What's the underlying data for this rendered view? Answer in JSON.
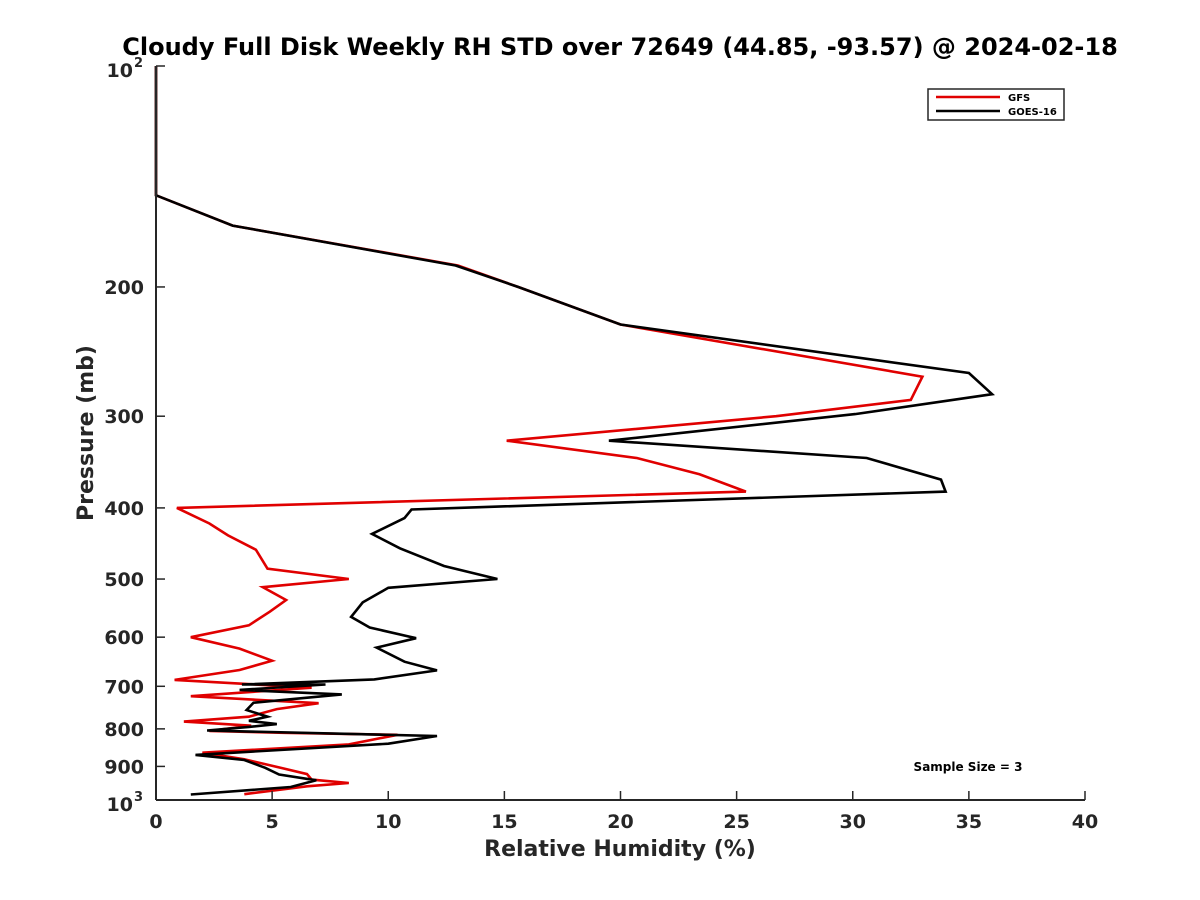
{
  "chart_data": {
    "type": "line",
    "title": "Cloudy Full Disk Weekly RH STD over 72649 (44.85, -93.57) @ 2024-02-18",
    "xlabel": "Relative Humidity (%)",
    "ylabel": "Pressure (mb)",
    "xlim": [
      0,
      40
    ],
    "ylim": [
      100,
      1000
    ],
    "y_scale": "log",
    "y_reversed": true,
    "grid": false,
    "legend_position": "top-right",
    "x_ticks": [
      "0",
      "5",
      "10",
      "15",
      "20",
      "25",
      "30",
      "35",
      "40"
    ],
    "y_ticks": [
      {
        "value": 100,
        "base": "10",
        "exp": "2"
      },
      {
        "value": 200,
        "label": "200"
      },
      {
        "value": 300,
        "label": "300"
      },
      {
        "value": 400,
        "label": "400"
      },
      {
        "value": 500,
        "label": "500"
      },
      {
        "value": 600,
        "label": "600"
      },
      {
        "value": 700,
        "label": "700"
      },
      {
        "value": 800,
        "label": "800"
      },
      {
        "value": 900,
        "label": "900"
      },
      {
        "value": 1000,
        "base": "10",
        "exp": "3"
      }
    ],
    "annotation": "Sample Size = 3",
    "series": [
      {
        "name": "GFS",
        "color": "#e00000",
        "points": [
          [
            0,
            100
          ],
          [
            0,
            125
          ],
          [
            0,
            150
          ],
          [
            3.3,
            165
          ],
          [
            13,
            187
          ],
          [
            15.6,
            200
          ],
          [
            20,
            225
          ],
          [
            33,
            265
          ],
          [
            32.5,
            285
          ],
          [
            26.7,
            300
          ],
          [
            15.1,
            324
          ],
          [
            20.7,
            342
          ],
          [
            23.4,
            360
          ],
          [
            25.4,
            380
          ],
          [
            0.9,
            400
          ],
          [
            2.3,
            420
          ],
          [
            3.1,
            436
          ],
          [
            4.3,
            456
          ],
          [
            4.8,
            484
          ],
          [
            8.3,
            500
          ],
          [
            4.6,
            513
          ],
          [
            5.6,
            534
          ],
          [
            4.9,
            554
          ],
          [
            4.0,
            578
          ],
          [
            1.5,
            600
          ],
          [
            3.6,
            622
          ],
          [
            5.0,
            646
          ],
          [
            3.6,
            665
          ],
          [
            0.8,
            686
          ],
          [
            6.7,
            703
          ],
          [
            1.5,
            722
          ],
          [
            7.0,
            738
          ],
          [
            5.2,
            752
          ],
          [
            4.0,
            770
          ],
          [
            1.2,
            782
          ],
          [
            4.1,
            792
          ],
          [
            2.3,
            805
          ],
          [
            5.5,
            810
          ],
          [
            10.4,
            815
          ],
          [
            8.3,
            840
          ],
          [
            2.0,
            862
          ],
          [
            3.8,
            880
          ],
          [
            5.5,
            906
          ],
          [
            6.5,
            922
          ],
          [
            6.7,
            938
          ],
          [
            8.3,
            948
          ],
          [
            6.5,
            958
          ],
          [
            3.8,
            982
          ]
        ]
      },
      {
        "name": "GOES-16",
        "color": "#000000",
        "points": [
          [
            0,
            100
          ],
          [
            0,
            125
          ],
          [
            0,
            150
          ],
          [
            3.3,
            165
          ],
          [
            12.9,
            187
          ],
          [
            15.6,
            200
          ],
          [
            20,
            225
          ],
          [
            35,
            262
          ],
          [
            36,
            280
          ],
          [
            30.1,
            298
          ],
          [
            19.5,
            324
          ],
          [
            30.6,
            342
          ],
          [
            33.8,
            366
          ],
          [
            34,
            380
          ],
          [
            11,
            402
          ],
          [
            10.7,
            413
          ],
          [
            9.3,
            434
          ],
          [
            10.5,
            454
          ],
          [
            12.4,
            480
          ],
          [
            14.7,
            500
          ],
          [
            10,
            514
          ],
          [
            8.9,
            538
          ],
          [
            8.6,
            553
          ],
          [
            8.4,
            563
          ],
          [
            9.2,
            582
          ],
          [
            11.2,
            602
          ],
          [
            9.5,
            620
          ],
          [
            10.7,
            648
          ],
          [
            12.1,
            666
          ],
          [
            9.4,
            685
          ],
          [
            3.7,
            696
          ],
          [
            7.3,
            696
          ],
          [
            3.6,
            708
          ],
          [
            8.0,
            718
          ],
          [
            4.2,
            737
          ],
          [
            3.9,
            754
          ],
          [
            4.8,
            770
          ],
          [
            4.0,
            780
          ],
          [
            5.2,
            788
          ],
          [
            4.0,
            795
          ],
          [
            2.2,
            804
          ],
          [
            12.1,
            818
          ],
          [
            10.0,
            838
          ],
          [
            1.7,
            868
          ],
          [
            3.8,
            882
          ],
          [
            4.7,
            904
          ],
          [
            5.3,
            923
          ],
          [
            6.9,
            940
          ],
          [
            5.8,
            960
          ],
          [
            1.5,
            983
          ]
        ]
      }
    ]
  }
}
